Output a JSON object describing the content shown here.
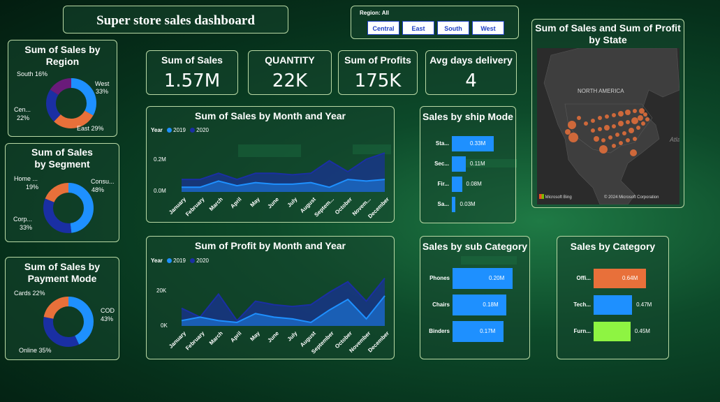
{
  "header": {
    "title": "Super store sales dashboard"
  },
  "slicer": {
    "label": "Region: All",
    "options": [
      "Central",
      "East",
      "South",
      "West"
    ]
  },
  "kpis": [
    {
      "label": "Sum of Sales",
      "value": "1.57M"
    },
    {
      "label": "QUANTITY",
      "value": "22K"
    },
    {
      "label": "Sum of Profits",
      "value": "175K"
    },
    {
      "label": "Avg days delivery",
      "value": "4"
    }
  ],
  "region_chart": {
    "title": "Sum of Sales by Region",
    "labels": {
      "south": "South 16%",
      "west": "West",
      "west_pct": "33%",
      "central": "Cen...",
      "central_pct": "22%",
      "east": "East 29%"
    }
  },
  "segment_chart": {
    "title": "Sum of Sales by Segment",
    "labels": {
      "home": "Home ...",
      "home_pct": "19%",
      "consumer": "Consu...",
      "consumer_pct": "48%",
      "corp": "Corp...",
      "corp_pct": "33%"
    }
  },
  "payment_chart": {
    "title": "Sum of Sales by Payment Mode",
    "labels": {
      "cards": "Cards 22%",
      "cod": "COD",
      "cod_pct": "43%",
      "online": "Online 35%"
    }
  },
  "sales_month": {
    "title": "Sum of Sales by Month and Year",
    "legend_title": "Year",
    "legend": [
      "2019",
      "2020"
    ],
    "y_ticks": [
      "0.2M",
      "0.0M"
    ],
    "months": [
      "January",
      "February",
      "March",
      "April",
      "May",
      "June",
      "July",
      "August",
      "Septem...",
      "October",
      "Novem...",
      "December"
    ]
  },
  "profit_month": {
    "title": "Sum of Profit by Month and Year",
    "legend_title": "Year",
    "legend": [
      "2019",
      "2020"
    ],
    "y_ticks": [
      "20K",
      "0K"
    ],
    "months": [
      "January",
      "February",
      "March",
      "April",
      "May",
      "June",
      "July",
      "August",
      "September",
      "October",
      "November",
      "December"
    ]
  },
  "ship_mode": {
    "title": "Sales by ship Mode",
    "items": [
      {
        "label": "Sta...",
        "value": "0.33M"
      },
      {
        "label": "Sec...",
        "value": "0.11M"
      },
      {
        "label": "Fir...",
        "value": "0.08M"
      },
      {
        "label": "Sa...",
        "value": "0.03M"
      }
    ]
  },
  "sub_category": {
    "title": "Sales by sub Category",
    "items": [
      {
        "label": "Phones",
        "value": "0.20M"
      },
      {
        "label": "Chairs",
        "value": "0.18M"
      },
      {
        "label": "Binders",
        "value": "0.17M"
      }
    ]
  },
  "category": {
    "title": "Sales by Category",
    "items": [
      {
        "label": "Offi...",
        "value": "0.64M"
      },
      {
        "label": "Tech...",
        "value": "0.47M"
      },
      {
        "label": "Furn...",
        "value": "0.45M"
      }
    ]
  },
  "map": {
    "title": "Sum of Sales and Sum of Profit by State",
    "region_label": "NORTH AMERICA",
    "ocean_label": "Atla",
    "brand": "Microsoft Bing",
    "copyright": "© 2024 Microsoft Corporation"
  },
  "colors": {
    "blue_2019": "#1e90ff",
    "navy_2020": "#1a2fa3",
    "orange": "#e8703a",
    "purple": "#6a1b7a",
    "green": "#8ef442",
    "card_border": "#b9d9a5"
  },
  "chart_data": [
    {
      "type": "pie",
      "title": "Sum of Sales by Region",
      "categories": [
        "West",
        "East",
        "Central",
        "South"
      ],
      "values": [
        33,
        29,
        22,
        16
      ]
    },
    {
      "type": "pie",
      "title": "Sum of Sales by Segment",
      "categories": [
        "Consumer",
        "Corporate",
        "Home Office"
      ],
      "values": [
        48,
        33,
        19
      ]
    },
    {
      "type": "pie",
      "title": "Sum of Sales by Payment Mode",
      "categories": [
        "COD",
        "Online",
        "Cards"
      ],
      "values": [
        43,
        35,
        22
      ]
    },
    {
      "type": "area",
      "title": "Sum of Sales by Month and Year",
      "categories": [
        "January",
        "February",
        "March",
        "April",
        "May",
        "June",
        "July",
        "August",
        "September",
        "October",
        "November",
        "December"
      ],
      "series": [
        {
          "name": "2019",
          "values": [
            0.03,
            0.03,
            0.07,
            0.04,
            0.06,
            0.05,
            0.05,
            0.06,
            0.03,
            0.08,
            0.07,
            0.08
          ]
        },
        {
          "name": "2020",
          "values": [
            0.08,
            0.08,
            0.12,
            0.08,
            0.12,
            0.12,
            0.11,
            0.12,
            0.2,
            0.13,
            0.21,
            0.25
          ]
        }
      ],
      "ylim": [
        0,
        0.3
      ]
    },
    {
      "type": "area",
      "title": "Sum of Profit by Month and Year",
      "categories": [
        "January",
        "February",
        "March",
        "April",
        "May",
        "June",
        "July",
        "August",
        "September",
        "October",
        "November",
        "December"
      ],
      "series": [
        {
          "name": "2019",
          "values": [
            3000,
            5000,
            3000,
            2000,
            7000,
            5000,
            4000,
            2000,
            9000,
            15000,
            4000,
            17000
          ]
        },
        {
          "name": "2020",
          "values": [
            10000,
            5000,
            18000,
            3000,
            14000,
            12000,
            11000,
            12000,
            19000,
            25000,
            14000,
            27000
          ]
        }
      ],
      "ylim": [
        0,
        30000
      ]
    },
    {
      "type": "bar",
      "title": "Sales by ship Mode",
      "categories": [
        "Sta...",
        "Sec...",
        "Fir...",
        "Sa..."
      ],
      "values": [
        0.33,
        0.11,
        0.08,
        0.03
      ]
    },
    {
      "type": "bar",
      "title": "Sales by sub Category",
      "categories": [
        "Phones",
        "Chairs",
        "Binders"
      ],
      "values": [
        0.2,
        0.18,
        0.17
      ]
    },
    {
      "type": "bar",
      "title": "Sales by Category",
      "categories": [
        "Offi...",
        "Tech...",
        "Furn..."
      ],
      "values": [
        0.64,
        0.47,
        0.45
      ]
    }
  ]
}
